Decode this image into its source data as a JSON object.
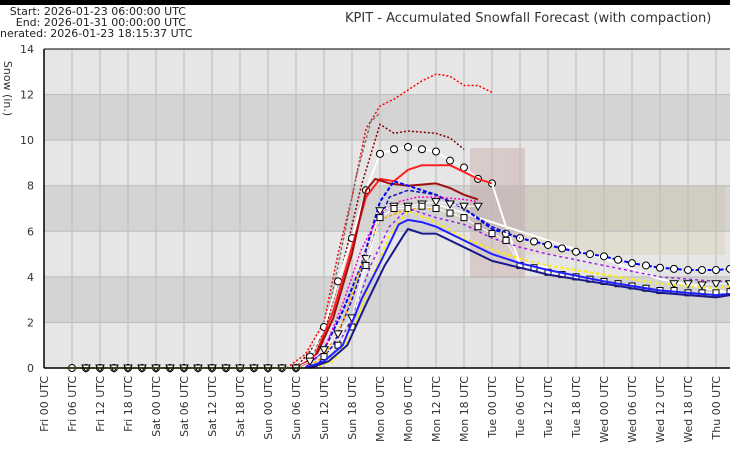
{
  "header": {
    "start": "Start: 2026-01-23 06:00:00 UTC",
    "end": "End: 2026-01-31 00:00:00 UTC",
    "generated": "nerated: 2026-01-23 18:15:37 UTC"
  },
  "chart_data": {
    "type": "line",
    "title": "KPIT - Accumulated Snowfall Forecast (with compaction)",
    "ylabel": "Snow (in.)",
    "xlabel": "",
    "x_units": "hours since Fri 00 UTC",
    "ylim": [
      0,
      14
    ],
    "xlim": [
      0,
      147
    ],
    "yticks": [
      0,
      2,
      4,
      6,
      8,
      10,
      12,
      14
    ],
    "xtick_labels": [
      "Fri 00 UTC",
      "Fri 06 UTC",
      "Fri 12 UTC",
      "Fri 18 UTC",
      "Sat 00 UTC",
      "Sat 06 UTC",
      "Sat 12 UTC",
      "Sat 18 UTC",
      "Sun 00 UTC",
      "Sun 06 UTC",
      "Sun 12 UTC",
      "Sun 18 UTC",
      "Mon 00 UTC",
      "Mon 06 UTC",
      "Mon 12 UTC",
      "Mon 18 UTC",
      "Tue 00 UTC",
      "Tue 06 UTC",
      "Tue 12 UTC",
      "Tue 18 UTC",
      "Wed 00 UTC",
      "Wed 06 UTC",
      "Wed 12 UTC",
      "Wed 18 UTC",
      "Thu 00 UTC"
    ],
    "grid": true,
    "series": [
      {
        "name": "red-dotted",
        "color": "#ff0000",
        "dash": "2,2",
        "width": 1.5,
        "points": [
          [
            52,
            0
          ],
          [
            56,
            0.6
          ],
          [
            60,
            2
          ],
          [
            63,
            5
          ],
          [
            66,
            7.5
          ],
          [
            69,
            10.5
          ],
          [
            72,
            11.5
          ],
          [
            75,
            11.8
          ],
          [
            78,
            12.2
          ],
          [
            81,
            12.6
          ],
          [
            84,
            12.9
          ],
          [
            87,
            12.8
          ],
          [
            90,
            12.4
          ],
          [
            93,
            12.4
          ],
          [
            96,
            12.1
          ]
        ]
      },
      {
        "name": "gray-dashed",
        "color": "#777777",
        "dash": "3,2",
        "width": 1.5,
        "points": [
          [
            54,
            0
          ],
          [
            58,
            0.7
          ],
          [
            61,
            2.5
          ],
          [
            64,
            5.5
          ],
          [
            67,
            8.5
          ],
          [
            70,
            10.8
          ],
          [
            72,
            11.2
          ]
        ]
      },
      {
        "name": "darkred-dotted",
        "color": "#8b0000",
        "dash": "2,2",
        "width": 1.5,
        "points": [
          [
            54,
            0
          ],
          [
            60,
            1.5
          ],
          [
            64,
            4.5
          ],
          [
            68,
            8
          ],
          [
            72,
            10.7
          ],
          [
            75,
            10.3
          ],
          [
            78,
            10.4
          ],
          [
            84,
            10.3
          ],
          [
            87,
            10.1
          ],
          [
            90,
            9.6
          ]
        ]
      },
      {
        "name": "white-circles",
        "color": "#ffffff",
        "dash": "",
        "width": 2,
        "marker": "circle",
        "marker_range": [
          6,
          96
        ],
        "points": [
          [
            6,
            0
          ],
          [
            54,
            0
          ],
          [
            57,
            0.5
          ],
          [
            60,
            1.8
          ],
          [
            63,
            3.8
          ],
          [
            66,
            5.7
          ],
          [
            69,
            7.8
          ],
          [
            72,
            9.4
          ],
          [
            75,
            9.6
          ],
          [
            78,
            9.7
          ],
          [
            81,
            9.6
          ],
          [
            84,
            9.5
          ],
          [
            87,
            9.1
          ],
          [
            90,
            8.8
          ],
          [
            93,
            8.3
          ],
          [
            96,
            8.1
          ]
        ]
      },
      {
        "name": "white-solid-drop",
        "color": "#ffffff",
        "dash": "",
        "width": 2,
        "points": [
          [
            96,
            8.1
          ],
          [
            99,
            6.2
          ],
          [
            102,
            4.6
          ],
          [
            108,
            4.4
          ]
        ]
      },
      {
        "name": "white-solid-long",
        "color": "#ffffff",
        "dash": "",
        "width": 2,
        "points": [
          [
            84,
            7.2
          ],
          [
            96,
            6.4
          ],
          [
            108,
            5.6
          ],
          [
            120,
            4.8
          ],
          [
            132,
            3.9
          ],
          [
            147,
            3.3
          ]
        ]
      },
      {
        "name": "red-solid",
        "color": "#ff2020",
        "dash": "",
        "width": 2,
        "points": [
          [
            54,
            0
          ],
          [
            58,
            0.5
          ],
          [
            62,
            2.5
          ],
          [
            66,
            5.3
          ],
          [
            69,
            7.5
          ],
          [
            72,
            8.3
          ],
          [
            75,
            8.2
          ],
          [
            78,
            8.7
          ],
          [
            81,
            8.9
          ],
          [
            84,
            8.9
          ],
          [
            87,
            8.9
          ],
          [
            90,
            8.6
          ],
          [
            93,
            8.3
          ],
          [
            96,
            8.1
          ]
        ]
      },
      {
        "name": "darkred-solid",
        "color": "#a01010",
        "dash": "",
        "width": 2,
        "points": [
          [
            54,
            0
          ],
          [
            58,
            0.4
          ],
          [
            62,
            2.2
          ],
          [
            66,
            5
          ],
          [
            69,
            7.8
          ],
          [
            71,
            8.3
          ],
          [
            74,
            8.1
          ],
          [
            78,
            8.0
          ],
          [
            84,
            8.1
          ],
          [
            87,
            7.9
          ],
          [
            90,
            7.6
          ],
          [
            93,
            7.4
          ]
        ]
      },
      {
        "name": "blue-dashed-circles",
        "color": "#0000ff",
        "dash": "4,2",
        "width": 2,
        "marker": "circle",
        "marker_range": [
          99,
          147
        ],
        "points": [
          [
            56,
            0
          ],
          [
            60,
            0.8
          ],
          [
            64,
            2.5
          ],
          [
            68,
            4.5
          ],
          [
            72,
            7.3
          ],
          [
            75,
            8.2
          ],
          [
            78,
            8.0
          ],
          [
            84,
            7.6
          ],
          [
            90,
            7.0
          ],
          [
            96,
            6.1
          ],
          [
            99,
            5.9
          ],
          [
            102,
            5.7
          ],
          [
            108,
            5.4
          ],
          [
            114,
            5.1
          ],
          [
            120,
            4.9
          ],
          [
            126,
            4.6
          ],
          [
            132,
            4.4
          ],
          [
            138,
            4.3
          ],
          [
            144,
            4.3
          ],
          [
            147,
            4.35
          ]
        ]
      },
      {
        "name": "blue-dashed-2",
        "color": "#1010cc",
        "dash": "4,2",
        "width": 1.5,
        "points": [
          [
            58,
            0
          ],
          [
            62,
            1
          ],
          [
            66,
            3
          ],
          [
            70,
            5.5
          ],
          [
            74,
            7.5
          ],
          [
            78,
            7.8
          ],
          [
            84,
            7.6
          ],
          [
            90,
            7.0
          ],
          [
            96,
            6.2
          ],
          [
            102,
            5.7
          ]
        ]
      },
      {
        "name": "magenta-dotted",
        "color": "#ff00cc",
        "dash": "2,2",
        "width": 1.5,
        "points": [
          [
            56,
            0
          ],
          [
            60,
            0.8
          ],
          [
            64,
            2.8
          ],
          [
            68,
            5.2
          ],
          [
            72,
            6.8
          ],
          [
            76,
            7.3
          ],
          [
            80,
            7.5
          ],
          [
            84,
            7.5
          ],
          [
            90,
            7.4
          ],
          [
            93,
            7.3
          ]
        ]
      },
      {
        "name": "purple-dotted",
        "color": "#a020f0",
        "dash": "3,3",
        "width": 1.5,
        "points": [
          [
            58,
            0
          ],
          [
            62,
            0.6
          ],
          [
            66,
            2.2
          ],
          [
            70,
            4.5
          ],
          [
            74,
            6.2
          ],
          [
            78,
            7.0
          ],
          [
            84,
            6.6
          ],
          [
            90,
            6.3
          ],
          [
            96,
            5.7
          ],
          [
            102,
            5.3
          ],
          [
            108,
            5.0
          ],
          [
            120,
            4.5
          ],
          [
            132,
            4.0
          ],
          [
            144,
            3.8
          ],
          [
            147,
            3.8
          ]
        ]
      },
      {
        "name": "orange-dashed",
        "color": "#ffa500",
        "dash": "3,2",
        "width": 1.5,
        "points": [
          [
            56,
            0
          ],
          [
            60,
            0.5
          ],
          [
            64,
            2
          ],
          [
            68,
            4.5
          ],
          [
            72,
            6.5
          ],
          [
            78,
            7.0
          ],
          [
            84,
            7.0
          ],
          [
            90,
            6.6
          ]
        ]
      },
      {
        "name": "triangles",
        "color": "#ffffff",
        "dash": "",
        "width": 1,
        "marker": "triangle",
        "marker_range": [
          9,
          93
        ],
        "points": [
          [
            9,
            0
          ],
          [
            54,
            0
          ],
          [
            57,
            0.3
          ],
          [
            60,
            0.8
          ],
          [
            63,
            1.5
          ],
          [
            66,
            2.2
          ],
          [
            69,
            4.8
          ],
          [
            72,
            6.9
          ],
          [
            75,
            7.1
          ],
          [
            78,
            7.1
          ],
          [
            81,
            7.2
          ],
          [
            84,
            7.3
          ],
          [
            87,
            7.2
          ],
          [
            90,
            7.1
          ],
          [
            93,
            7.1
          ]
        ]
      },
      {
        "name": "triangles-right",
        "color": "#ffffff",
        "dash": "",
        "width": 1,
        "marker": "triangle",
        "marker_range": [
          135,
          147
        ],
        "points": [
          [
            135,
            3.7
          ],
          [
            138,
            3.7
          ],
          [
            141,
            3.65
          ],
          [
            144,
            3.7
          ],
          [
            147,
            3.7
          ]
        ]
      },
      {
        "name": "squares",
        "color": "#ffffff",
        "dash": "",
        "width": 1,
        "marker": "square",
        "marker_range": [
          60,
          147
        ],
        "points": [
          [
            60,
            0.5
          ],
          [
            63,
            1.0
          ],
          [
            66,
            1.8
          ],
          [
            69,
            4.5
          ],
          [
            72,
            6.6
          ],
          [
            75,
            7.0
          ],
          [
            78,
            7.0
          ],
          [
            81,
            7.1
          ],
          [
            84,
            7.0
          ],
          [
            87,
            6.8
          ],
          [
            90,
            6.6
          ],
          [
            93,
            6.2
          ],
          [
            96,
            5.9
          ],
          [
            99,
            5.6
          ],
          [
            102,
            4.5
          ],
          [
            105,
            4.4
          ],
          [
            108,
            4.2
          ],
          [
            111,
            4.1
          ],
          [
            114,
            4.0
          ],
          [
            117,
            3.9
          ],
          [
            120,
            3.8
          ],
          [
            123,
            3.7
          ],
          [
            126,
            3.6
          ],
          [
            129,
            3.5
          ],
          [
            132,
            3.4
          ],
          [
            135,
            3.4
          ],
          [
            138,
            3.3
          ],
          [
            141,
            3.3
          ],
          [
            144,
            3.3
          ],
          [
            147,
            3.35
          ]
        ]
      },
      {
        "name": "yellow-dotted",
        "color": "#ffee00",
        "dash": "3,3",
        "width": 2,
        "points": [
          [
            5,
            0
          ],
          [
            58,
            0
          ],
          [
            62,
            0.3
          ],
          [
            66,
            1.5
          ],
          [
            70,
            3.8
          ],
          [
            74,
            5.8
          ],
          [
            78,
            6.9
          ],
          [
            84,
            6.4
          ],
          [
            90,
            5.7
          ],
          [
            96,
            5.2
          ],
          [
            102,
            4.8
          ],
          [
            108,
            4.5
          ],
          [
            120,
            4.1
          ],
          [
            132,
            3.7
          ],
          [
            144,
            3.5
          ],
          [
            147,
            3.6
          ]
        ]
      },
      {
        "name": "blue-solid",
        "color": "#2020ff",
        "dash": "",
        "width": 2,
        "points": [
          [
            56,
            0
          ],
          [
            60,
            0.3
          ],
          [
            64,
            1
          ],
          [
            68,
            3
          ],
          [
            72,
            4.6
          ],
          [
            76,
            6.3
          ],
          [
            78,
            6.5
          ],
          [
            81,
            6.4
          ],
          [
            84,
            6.2
          ],
          [
            90,
            5.6
          ],
          [
            96,
            5.0
          ],
          [
            102,
            4.6
          ],
          [
            108,
            4.3
          ],
          [
            120,
            3.8
          ],
          [
            132,
            3.4
          ],
          [
            144,
            3.2
          ],
          [
            147,
            3.25
          ]
        ]
      },
      {
        "name": "navy-solid",
        "color": "#1a1a8c",
        "dash": "",
        "width": 2,
        "points": [
          [
            57,
            0
          ],
          [
            61,
            0.3
          ],
          [
            65,
            1
          ],
          [
            69,
            2.8
          ],
          [
            73,
            4.5
          ],
          [
            77,
            5.8
          ],
          [
            78,
            6.1
          ],
          [
            81,
            5.9
          ],
          [
            84,
            5.9
          ],
          [
            90,
            5.3
          ],
          [
            96,
            4.7
          ],
          [
            102,
            4.4
          ],
          [
            108,
            4.1
          ],
          [
            120,
            3.7
          ],
          [
            132,
            3.3
          ],
          [
            144,
            3.1
          ],
          [
            147,
            3.2
          ]
        ]
      }
    ]
  },
  "colors": {
    "band_light": "#e6e6e6",
    "band_dark": "#d4d4d4",
    "grid": "#bbbbbb"
  }
}
